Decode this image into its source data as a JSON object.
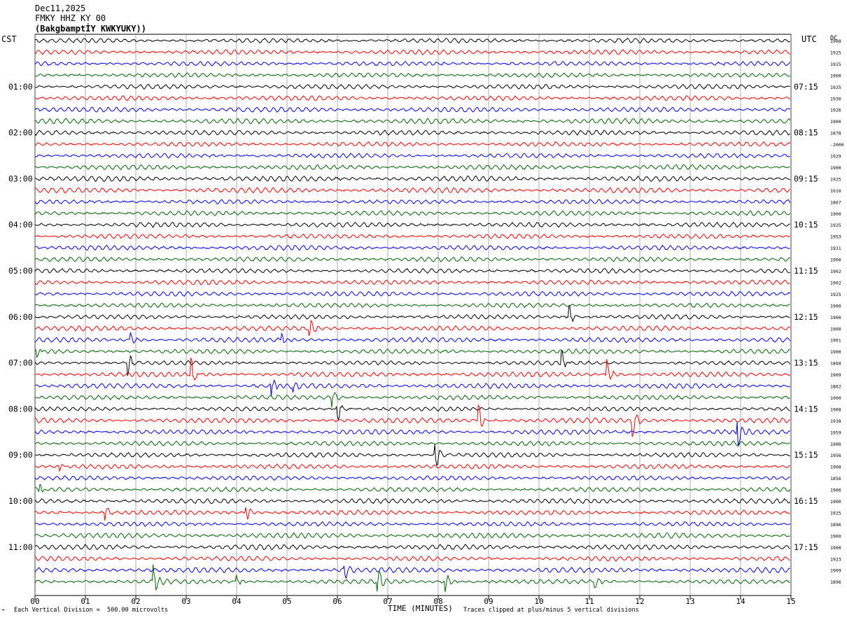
{
  "header": {
    "date": "Dec11,2025",
    "station": "FMKY HHZ KY 00",
    "site": "(BakgbamptİY KWKYUKY))"
  },
  "left_label": "CST",
  "right_label": "UTC",
  "dc_label": "DC",
  "footer": {
    "scale_note": "Each Vertical Division =  500.00 microvolts",
    "clip_note": "Traces clipped at plus/minus 5 vertical divisions",
    "x_axis_title": "TIME (MINUTES)"
  },
  "chart_data": {
    "type": "line",
    "title": "FMKY HHZ KY 00",
    "xlabel": "TIME (MINUTES)",
    "xlim": [
      0,
      15
    ],
    "x_ticks": [
      "00",
      "01",
      "02",
      "03",
      "04",
      "05",
      "06",
      "07",
      "08",
      "09",
      "10",
      "11",
      "12",
      "13",
      "14",
      "15"
    ],
    "row_count": 48,
    "minutes_per_row": 15,
    "trace_colors": [
      "#000000",
      "#ff0000",
      "#0000ff",
      "#006400"
    ],
    "left_hour_labels": [
      {
        "row": 4,
        "label": "01:00"
      },
      {
        "row": 8,
        "label": "02:00"
      },
      {
        "row": 12,
        "label": "03:00"
      },
      {
        "row": 16,
        "label": "04:00"
      },
      {
        "row": 20,
        "label": "05:00"
      },
      {
        "row": 24,
        "label": "06:00"
      },
      {
        "row": 28,
        "label": "07:00"
      },
      {
        "row": 32,
        "label": "08:00"
      },
      {
        "row": 36,
        "label": "09:00"
      },
      {
        "row": 40,
        "label": "10:00"
      },
      {
        "row": 44,
        "label": "11:00"
      }
    ],
    "right_hour_labels": [
      {
        "row": 4,
        "label": "07:15"
      },
      {
        "row": 8,
        "label": "08:15"
      },
      {
        "row": 12,
        "label": "09:15"
      },
      {
        "row": 16,
        "label": "10:15"
      },
      {
        "row": 20,
        "label": "11:15"
      },
      {
        "row": 24,
        "label": "12:15"
      },
      {
        "row": 28,
        "label": "13:15"
      },
      {
        "row": 32,
        "label": "14:15"
      },
      {
        "row": 36,
        "label": "15:15"
      },
      {
        "row": 40,
        "label": "16:15"
      },
      {
        "row": 44,
        "label": "17:15"
      }
    ],
    "dc_offsets": [
      "1908",
      "1925",
      "1915",
      "1900",
      "1925",
      "1930",
      "1926",
      "1900",
      "1878",
      "-2000",
      "1929",
      "1900",
      "1925",
      "1910",
      "1867",
      "1900",
      "1925",
      "1953",
      "1931",
      "1900",
      "1902",
      "1902",
      "1925",
      "1900",
      "1900",
      "1900",
      "1901",
      "1900",
      "1868",
      "1909",
      "1862",
      "1900",
      "1908",
      "1938",
      "1959",
      "1900",
      "1956",
      "1908",
      "1856",
      "1906",
      "1900",
      "1925",
      "1896",
      "1900",
      "1900",
      "1923",
      "1909",
      "1896"
    ],
    "events": [
      {
        "row": 24,
        "minute": 10.6,
        "amp": 2.2
      },
      {
        "row": 25,
        "minute": 5.45,
        "amp": 2.0
      },
      {
        "row": 26,
        "minute": 1.9,
        "amp": 1.3
      },
      {
        "row": 26,
        "minute": 4.9,
        "amp": 1.4
      },
      {
        "row": 27,
        "minute": 0.05,
        "amp": 1.3
      },
      {
        "row": 28,
        "minute": 1.85,
        "amp": 2.2
      },
      {
        "row": 28,
        "minute": 10.45,
        "amp": 2.6
      },
      {
        "row": 29,
        "minute": 3.1,
        "amp": 3.0
      },
      {
        "row": 29,
        "minute": 11.35,
        "amp": 2.8
      },
      {
        "row": 30,
        "minute": 4.7,
        "amp": 2.6
      },
      {
        "row": 30,
        "minute": 5.1,
        "amp": 1.5
      },
      {
        "row": 31,
        "minute": 5.9,
        "amp": 1.8
      },
      {
        "row": 32,
        "minute": 6.0,
        "amp": 2.5
      },
      {
        "row": 33,
        "minute": 8.8,
        "amp": 3.0
      },
      {
        "row": 33,
        "minute": 11.85,
        "amp": 3.2
      },
      {
        "row": 34,
        "minute": 13.95,
        "amp": 3.0
      },
      {
        "row": 36,
        "minute": 7.95,
        "amp": 3.0
      },
      {
        "row": 37,
        "minute": 0.5,
        "amp": 1.0
      },
      {
        "row": 39,
        "minute": 0.1,
        "amp": 1.6
      },
      {
        "row": 41,
        "minute": 1.4,
        "amp": 1.4
      },
      {
        "row": 41,
        "minute": 4.2,
        "amp": 1.6
      },
      {
        "row": 46,
        "minute": 6.15,
        "amp": 1.5
      },
      {
        "row": 47,
        "minute": 2.35,
        "amp": 3.2
      },
      {
        "row": 47,
        "minute": 4.0,
        "amp": 1.6
      },
      {
        "row": 47,
        "minute": 6.8,
        "amp": 2.8
      },
      {
        "row": 47,
        "minute": 8.15,
        "amp": 2.0
      },
      {
        "row": 47,
        "minute": 11.1,
        "amp": 1.4
      }
    ]
  }
}
